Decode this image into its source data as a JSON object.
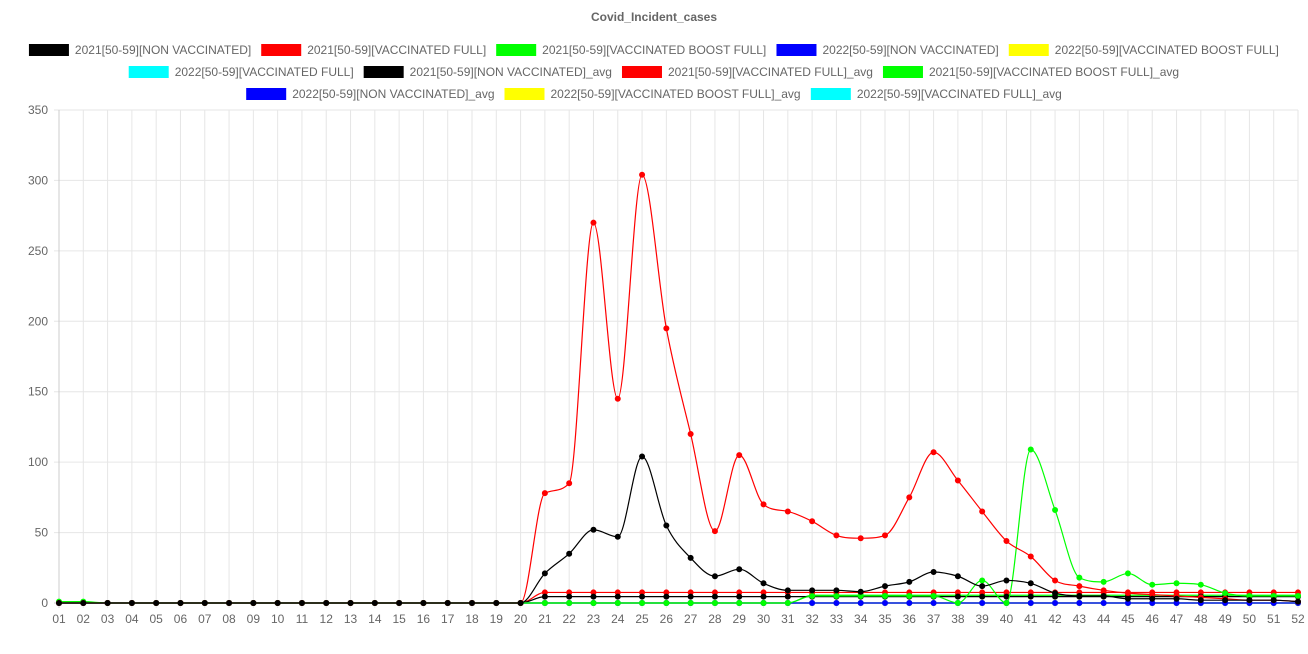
{
  "chart_data": {
    "type": "line",
    "title": "Covid_Incident_cases",
    "xlabel": "",
    "ylabel": "",
    "ylim": [
      0,
      350
    ],
    "yticks": [
      0,
      50,
      100,
      150,
      200,
      250,
      300,
      350
    ],
    "grid": true,
    "legend_position": "top",
    "categories": [
      "01",
      "02",
      "03",
      "04",
      "05",
      "06",
      "07",
      "08",
      "09",
      "10",
      "11",
      "12",
      "13",
      "14",
      "15",
      "16",
      "17",
      "18",
      "19",
      "20",
      "21",
      "22",
      "23",
      "24",
      "25",
      "26",
      "27",
      "28",
      "29",
      "30",
      "31",
      "32",
      "33",
      "34",
      "35",
      "36",
      "37",
      "38",
      "39",
      "40",
      "41",
      "42",
      "43",
      "44",
      "45",
      "46",
      "47",
      "48",
      "49",
      "50",
      "51",
      "52"
    ],
    "series": [
      {
        "name": "2021[50-59][NON VACCINATED]",
        "color": "#000000",
        "values": [
          0,
          0,
          0,
          0,
          0,
          0,
          0,
          0,
          0,
          0,
          0,
          0,
          0,
          0,
          0,
          0,
          0,
          0,
          0,
          0,
          21,
          35,
          52,
          47,
          104,
          55,
          32,
          19,
          24,
          14,
          9,
          9,
          9,
          8,
          12,
          15,
          22,
          19,
          12,
          16,
          14,
          7,
          5,
          5,
          3,
          3,
          3,
          2,
          2,
          2,
          2,
          1
        ]
      },
      {
        "name": "2021[50-59][VACCINATED FULL]",
        "color": "#ff0000",
        "values": [
          0,
          0,
          0,
          0,
          0,
          0,
          0,
          0,
          0,
          0,
          0,
          0,
          0,
          0,
          0,
          0,
          0,
          0,
          0,
          0,
          78,
          85,
          270,
          145,
          304,
          195,
          120,
          51,
          105,
          70,
          65,
          58,
          48,
          46,
          48,
          75,
          107,
          87,
          65,
          44,
          33,
          16,
          12,
          9,
          7,
          6,
          5,
          4,
          3,
          2,
          2,
          1
        ]
      },
      {
        "name": "2021[50-59][VACCINATED BOOST FULL]",
        "color": "#00ff00",
        "values": [
          1,
          1,
          0,
          0,
          0,
          0,
          0,
          0,
          0,
          0,
          0,
          0,
          0,
          0,
          0,
          0,
          0,
          0,
          0,
          0,
          0,
          0,
          0,
          0,
          0,
          0,
          0,
          0,
          0,
          0,
          0,
          5,
          5,
          5,
          5,
          5,
          5,
          0,
          16,
          0,
          109,
          66,
          18,
          15,
          21,
          13,
          14,
          13,
          7,
          5,
          5,
          5
        ]
      },
      {
        "name": "2022[50-59][NON VACCINATED]",
        "color": "#0000ff",
        "values": [
          0,
          0,
          0,
          0,
          0,
          0,
          0,
          0,
          0,
          0,
          0,
          0,
          0,
          0,
          0,
          0,
          0,
          0,
          0,
          0,
          0,
          0,
          0,
          0,
          0,
          0,
          0,
          0,
          0,
          0,
          0,
          0,
          0,
          0,
          0,
          0,
          0,
          0,
          0,
          0,
          0,
          0,
          0,
          0,
          0,
          0,
          0,
          0,
          0,
          0,
          0,
          0
        ]
      },
      {
        "name": "2022[50-59][VACCINATED BOOST FULL]",
        "color": "#ffff00",
        "values": [
          0,
          0,
          0,
          0,
          0,
          0,
          0,
          0,
          0,
          0,
          0,
          0,
          0,
          0,
          0,
          0,
          0,
          0,
          0,
          0,
          0,
          0,
          0,
          0,
          0,
          0,
          0,
          0,
          0,
          0,
          0,
          0,
          0,
          0,
          0,
          0,
          0,
          0,
          0,
          0,
          0,
          0,
          0,
          0,
          0,
          0,
          0,
          0,
          0,
          0,
          0,
          0
        ]
      },
      {
        "name": "2022[50-59][VACCINATED FULL]",
        "color": "#00ffff",
        "values": [
          0,
          0,
          0,
          0,
          0,
          0,
          0,
          0,
          0,
          0,
          0,
          0,
          0,
          0,
          0,
          0,
          0,
          0,
          0,
          0,
          0,
          0,
          0,
          0,
          0,
          0,
          0,
          0,
          0,
          0,
          0,
          0,
          0,
          0,
          0,
          0,
          0,
          0,
          0,
          0,
          0,
          0,
          0,
          0,
          0,
          0,
          0,
          0,
          0,
          0,
          0,
          0
        ]
      },
      {
        "name": "2021[50-59][NON VACCINATED]_avg",
        "color": "#000000",
        "values": [
          0,
          0,
          0,
          0,
          0,
          0,
          0,
          0,
          0,
          0,
          0,
          0,
          0,
          0,
          0,
          0,
          0,
          0,
          0,
          0,
          4.5,
          4.5,
          4.5,
          4.5,
          4.5,
          4.5,
          4.5,
          4.5,
          4.5,
          4.5,
          4.5,
          4.5,
          4.5,
          4.5,
          4.5,
          4.5,
          4.5,
          4.5,
          4.5,
          4.5,
          4.5,
          4.5,
          4.5,
          4.5,
          4.5,
          4.5,
          4.5,
          4.5,
          4.5,
          4.5,
          4.5,
          4.5
        ]
      },
      {
        "name": "2021[50-59][VACCINATED FULL]_avg",
        "color": "#ff0000",
        "values": [
          0,
          0,
          0,
          0,
          0,
          0,
          0,
          0,
          0,
          0,
          0,
          0,
          0,
          0,
          0,
          0,
          0,
          0,
          0,
          0,
          7.5,
          7.5,
          7.5,
          7.5,
          7.5,
          7.5,
          7.5,
          7.5,
          7.5,
          7.5,
          7.5,
          7.5,
          7.5,
          7.5,
          7.5,
          7.5,
          7.5,
          7.5,
          7.5,
          7.5,
          7.5,
          7.5,
          7.5,
          7.5,
          7.5,
          7.5,
          7.5,
          7.5,
          7.5,
          7.5,
          7.5,
          7.5
        ]
      },
      {
        "name": "2021[50-59][VACCINATED BOOST FULL]_avg",
        "color": "#00ff00",
        "values": [
          0,
          0,
          0,
          0,
          0,
          0,
          0,
          0,
          0,
          0,
          0,
          0,
          0,
          0,
          0,
          0,
          0,
          0,
          0,
          0,
          0,
          0,
          0,
          0,
          0,
          0,
          0,
          0,
          0,
          0,
          0,
          5.5,
          5.5,
          5.5,
          5.5,
          5.5,
          5.5,
          5.5,
          5.5,
          5.5,
          5.5,
          5.5,
          5.5,
          5.5,
          5.5,
          5.5,
          5.5,
          5.5,
          5.5,
          5.5,
          5.5,
          5.5
        ]
      },
      {
        "name": "2022[50-59][NON VACCINATED]_avg",
        "color": "#0000ff",
        "values": [
          0,
          0,
          0,
          0,
          0,
          0,
          0,
          0,
          0,
          0,
          0,
          0,
          0,
          0,
          0,
          0,
          0,
          0,
          0,
          0,
          0,
          0,
          0,
          0,
          0,
          0,
          0,
          0,
          0,
          0,
          0,
          0,
          0,
          0,
          0,
          0,
          0,
          0,
          0,
          0,
          0,
          0,
          0,
          0,
          0,
          0,
          0,
          0,
          0,
          0,
          0,
          0
        ]
      },
      {
        "name": "2022[50-59][VACCINATED BOOST FULL]_avg",
        "color": "#ffff00",
        "values": [
          0,
          0,
          0,
          0,
          0,
          0,
          0,
          0,
          0,
          0,
          0,
          0,
          0,
          0,
          0,
          0,
          0,
          0,
          0,
          0,
          0,
          0,
          0,
          0,
          0,
          0,
          0,
          0,
          0,
          0,
          0,
          0,
          0,
          0,
          0,
          0,
          0,
          0,
          0,
          0,
          0,
          0,
          0,
          0,
          0,
          0,
          0,
          0,
          0,
          0,
          0,
          0
        ]
      },
      {
        "name": "2022[50-59][VACCINATED FULL]_avg",
        "color": "#00ffff",
        "values": [
          0,
          0,
          0,
          0,
          0,
          0,
          0,
          0,
          0,
          0,
          0,
          0,
          0,
          0,
          0,
          0,
          0,
          0,
          0,
          0,
          0,
          0,
          0,
          0,
          0,
          0,
          0,
          0,
          0,
          0,
          0,
          0,
          0,
          0,
          0,
          0,
          0,
          0,
          0,
          0,
          0,
          0,
          0,
          0,
          0,
          0,
          0,
          0,
          0,
          0,
          0,
          0
        ]
      }
    ]
  }
}
